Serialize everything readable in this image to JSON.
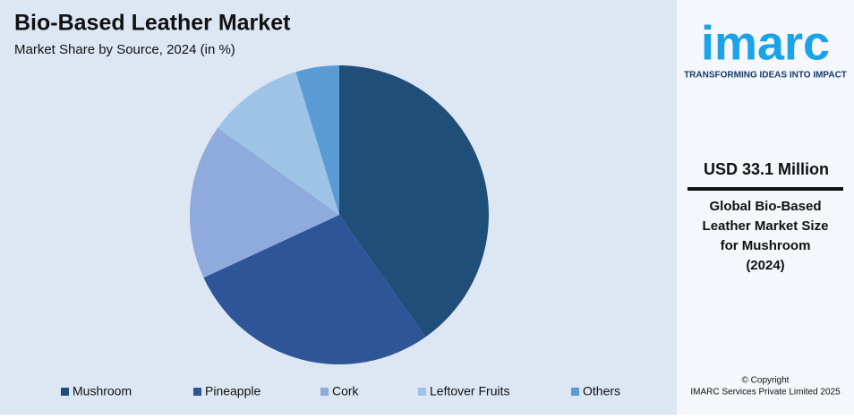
{
  "chart_data": {
    "type": "pie",
    "title": "Bio-Based Leather Market",
    "subtitle": "Market Share by Source, 2024 (in %)",
    "categories": [
      "Mushroom",
      "Pineapple",
      "Cork",
      "Leftover Fruits",
      "Others"
    ],
    "values": [
      40.2,
      27.9,
      16.8,
      10.4,
      4.7
    ],
    "colors": [
      "#1f4e79",
      "#2e5597",
      "#8faadc",
      "#9dc3e6",
      "#5b9bd5"
    ]
  },
  "panel": {
    "logo": "imarc",
    "tagline": "TRANSFORMING IDEAS INTO IMPACT",
    "headline": "USD 33.1 Million",
    "description": [
      "Global Bio-Based",
      "Leather Market Size",
      "for Mushroom",
      "(2024)"
    ],
    "copyright": [
      "© Copyright",
      "IMARC Services Private Limited 2025"
    ]
  }
}
